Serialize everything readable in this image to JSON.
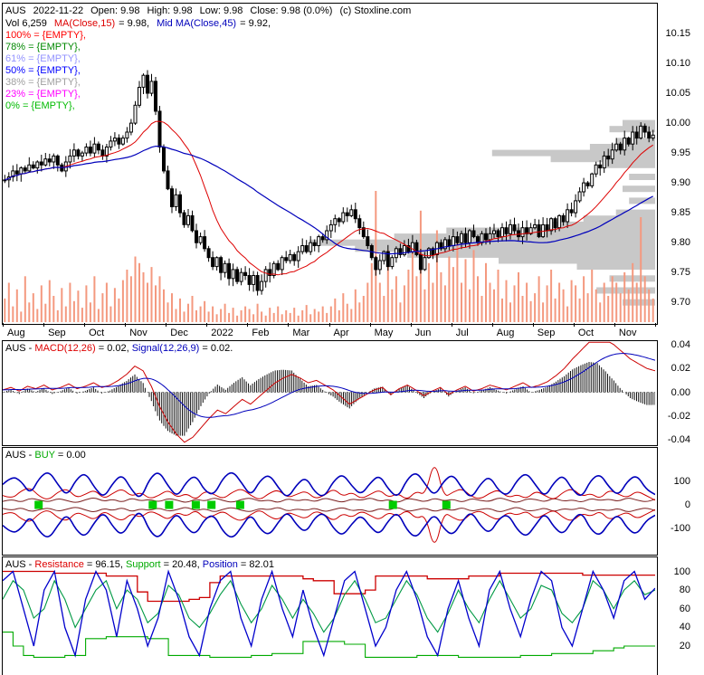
{
  "colors": {
    "background": "#ffffff",
    "border": "#000000",
    "candle": "#000000",
    "volume": "#f4997f",
    "profile": "#c8c8c8",
    "ma_fast": "#dd0000",
    "ma_slow": "#0000bb",
    "macd_line": "#cc0000",
    "signal_line": "#0000bb",
    "hist": "#111111",
    "osc_blue": "#0000bb",
    "osc_red": "#cc0000",
    "osc_maroon": "#7a2020",
    "buy_marker": "#00cc00",
    "fib": [
      "#ff0000",
      "#008800",
      "#9393ff",
      "#0000ff",
      "#a0a0a0",
      "#ff00ff",
      "#00bb00"
    ]
  },
  "main": {
    "title": {
      "symbol": "AUS",
      "date": "2022-11-22",
      "open": "Open: 9.98",
      "high": "High: 9.98",
      "low": "Low: 9.98",
      "close": "Close: 9.98 (0.0%)",
      "copyright": "(c) Stoxline.com"
    },
    "subtitle": {
      "vol": "Vol 6,259",
      "ma_fast_label": "MA(Close,15)",
      "ma_fast_value": "= 9.98,",
      "ma_slow_label": "Mid MA(Close,45)",
      "ma_slow_value": "= 9.92,"
    },
    "fib_levels": [
      "100% = {EMPTY},",
      "78% = {EMPTY},",
      "61% = {EMPTY},",
      "50% = {EMPTY},",
      "38% = {EMPTY},",
      "23% = {EMPTY},",
      "0% = {EMPTY},"
    ]
  },
  "macd_panel": {
    "prefix": "AUS - ",
    "macd_label": "MACD(12,26)",
    "macd_value": " = 0.02, ",
    "signal_label": "Signal(12,26,9)",
    "signal_value": " = 0.02."
  },
  "buy_panel": {
    "prefix": "AUS - ",
    "buy_label": "BUY",
    "buy_value": " = 0.00"
  },
  "rsp_panel": {
    "prefix": "AUS - ",
    "res_label": "Resistance",
    "res_value": " = 96.15, ",
    "sup_label": "Support",
    "sup_value": " = 20.48, ",
    "pos_label": "Position",
    "pos_value": " = 82.01"
  },
  "chart_data": [
    {
      "type": "candlestick",
      "title": "AUS daily price with MA(15), MA(45), volume and volume-by-price",
      "x_labels": [
        "Aug",
        "Sep",
        "Oct",
        "Nov",
        "Dec",
        "2022",
        "Feb",
        "Mar",
        "Apr",
        "May",
        "Jun",
        "Jul",
        "Aug",
        "Sep",
        "Oct",
        "Nov"
      ],
      "y_ticks": [
        "10.15",
        "10.10",
        "10.05",
        "10.00",
        "9.95",
        "9.90",
        "9.85",
        "9.80",
        "9.75",
        "9.70"
      ],
      "ylim": [
        9.667,
        10.2
      ],
      "ma_fast_period": 15,
      "ma_slow_period": 45,
      "last": {
        "open": 9.98,
        "high": 9.98,
        "low": 9.98,
        "close": 9.98,
        "change_pct": 0.0,
        "volume": 6259,
        "ma15": 9.98,
        "ma45": 9.92
      },
      "closes": [
        9.905,
        9.91,
        9.92,
        9.915,
        9.925,
        9.92,
        9.93,
        9.925,
        9.935,
        9.93,
        9.94,
        9.935,
        9.945,
        9.93,
        9.92,
        9.935,
        9.945,
        9.955,
        9.945,
        9.95,
        9.96,
        9.95,
        9.965,
        9.955,
        9.945,
        9.96,
        9.97,
        9.975,
        9.965,
        9.975,
        9.985,
        10.0,
        10.03,
        10.06,
        10.08,
        10.05,
        10.07,
        10.02,
        9.96,
        9.92,
        9.89,
        9.86,
        9.88,
        9.85,
        9.83,
        9.845,
        9.82,
        9.8,
        9.81,
        9.79,
        9.775,
        9.76,
        9.775,
        9.75,
        9.765,
        9.74,
        9.755,
        9.735,
        9.75,
        9.745,
        9.73,
        9.745,
        9.72,
        9.735,
        9.755,
        9.745,
        9.765,
        9.755,
        9.775,
        9.77,
        9.78,
        9.77,
        9.785,
        9.795,
        9.785,
        9.8,
        9.795,
        9.81,
        9.805,
        9.82,
        9.83,
        9.84,
        9.835,
        9.85,
        9.845,
        9.855,
        9.84,
        9.825,
        9.81,
        9.795,
        9.775,
        9.755,
        9.77,
        9.785,
        9.76,
        9.775,
        9.79,
        9.78,
        9.795,
        9.785,
        9.8,
        9.78,
        9.755,
        9.775,
        9.79,
        9.78,
        9.8,
        9.79,
        9.805,
        9.795,
        9.81,
        9.8,
        9.815,
        9.8,
        9.82,
        9.81,
        9.8,
        9.815,
        9.805,
        9.815,
        9.82,
        9.81,
        9.825,
        9.815,
        9.83,
        9.82,
        9.81,
        9.825,
        9.815,
        9.825,
        9.83,
        9.81,
        9.83,
        9.82,
        9.84,
        9.825,
        9.845,
        9.835,
        9.855,
        9.85,
        9.87,
        9.885,
        9.9,
        9.895,
        9.915,
        9.93,
        9.925,
        9.945,
        9.94,
        9.955,
        9.965,
        9.955,
        9.975,
        9.965,
        9.985,
        9.975,
        9.995,
        9.985,
        9.975,
        9.98
      ],
      "volumes": [
        18,
        30,
        12,
        25,
        8,
        35,
        15,
        22,
        10,
        28,
        14,
        32,
        20,
        9,
        26,
        12,
        30,
        16,
        24,
        11,
        28,
        15,
        35,
        10,
        22,
        30,
        12,
        26,
        18,
        32,
        40,
        35,
        50,
        45,
        38,
        30,
        42,
        28,
        35,
        25,
        15,
        22,
        10,
        18,
        8,
        14,
        20,
        9,
        12,
        16,
        8,
        12,
        6,
        10,
        14,
        7,
        11,
        5,
        9,
        12,
        10,
        6,
        14,
        8,
        5,
        11,
        7,
        12,
        6,
        9,
        7,
        11,
        5,
        9,
        13,
        6,
        10,
        8,
        12,
        7,
        12,
        18,
        9,
        22,
        14,
        10,
        25,
        15,
        20,
        30,
        45,
        100,
        30,
        20,
        55,
        25,
        35,
        15,
        28,
        40,
        60,
        35,
        85,
        25,
        45,
        30,
        70,
        38,
        28,
        50,
        42,
        65,
        30,
        48,
        25,
        55,
        35,
        20,
        45,
        30,
        25,
        40,
        18,
        32,
        15,
        28,
        38,
        20,
        30,
        16,
        22,
        35,
        15,
        28,
        40,
        18,
        30,
        25,
        12,
        32,
        28,
        18,
        35,
        22,
        40,
        25,
        15,
        30,
        20,
        35,
        30,
        22,
        38,
        25,
        45,
        30,
        80,
        35,
        25,
        18
      ],
      "volume_profile": [
        [
          10.0,
          0.05
        ],
        [
          9.99,
          0.07
        ],
        [
          9.97,
          0.06
        ],
        [
          9.96,
          0.1
        ],
        [
          9.95,
          0.25
        ],
        [
          9.94,
          0.16
        ],
        [
          9.93,
          0.08
        ],
        [
          9.91,
          0.04
        ],
        [
          9.89,
          0.05
        ],
        [
          9.87,
          0.04
        ],
        [
          9.85,
          0.06
        ],
        [
          9.84,
          0.11
        ],
        [
          9.83,
          0.16
        ],
        [
          9.82,
          0.32
        ],
        [
          9.81,
          0.4
        ],
        [
          9.8,
          0.53
        ],
        [
          9.79,
          0.46
        ],
        [
          9.78,
          0.38
        ],
        [
          9.77,
          0.24
        ],
        [
          9.76,
          0.12
        ],
        [
          9.74,
          0.07
        ],
        [
          9.72,
          0.09
        ],
        [
          9.7,
          0.05
        ]
      ]
    },
    {
      "type": "macd",
      "title": "MACD(12,26) with Signal(12,26,9)",
      "y_ticks": [
        "0.04",
        "0.02",
        "0.00",
        "-0.02",
        "-0.04"
      ],
      "ylim": [
        -0.043,
        0.043
      ],
      "signal_period": 9,
      "last": {
        "macd": 0.02,
        "signal": 0.02
      },
      "macd": [
        0.002,
        0.004,
        0.001,
        0.005,
        0.003,
        0.006,
        0.002,
        0.004,
        0.007,
        0.003,
        0.005,
        0.008,
        0.004,
        0.006,
        0.01,
        0.015,
        0.022,
        0.018,
        0.005,
        -0.012,
        -0.025,
        -0.035,
        -0.042,
        -0.038,
        -0.03,
        -0.022,
        -0.015,
        -0.018,
        -0.012,
        -0.006,
        -0.01,
        -0.004,
        0.002,
        0.008,
        0.012,
        0.015,
        0.012,
        0.008,
        0.01,
        0.006,
        0.002,
        -0.004,
        -0.01,
        -0.006,
        -0.002,
        0.002,
        0.004,
        -0.002,
        0.003,
        0.006,
        0.002,
        -0.003,
        0.001,
        0.004,
        -0.002,
        0.002,
        0.005,
        0.001,
        0.003,
        0.006,
        0.004,
        0.002,
        0.005,
        0.008,
        0.004,
        0.006,
        0.009,
        0.014,
        0.02,
        0.028,
        0.035,
        0.042,
        0.046,
        0.044,
        0.04,
        0.034,
        0.028,
        0.024,
        0.02,
        0.018
      ]
    },
    {
      "type": "oscillator",
      "title": "BUY indicator",
      "y_ticks": [
        "100",
        "0",
        "-100"
      ],
      "last": {
        "buy": 0.0
      },
      "blue_amplitude": [
        87,
        123,
        102,
        44,
        116,
        145,
        87,
        36,
        109,
        138,
        73,
        29,
        94,
        131,
        65,
        22,
        113,
        145,
        80,
        32,
        99,
        128,
        58,
        41,
        116,
        145,
        94,
        36,
        104,
        131,
        73,
        26,
        87,
        119,
        51,
        32,
        102,
        133,
        80,
        41,
        94,
        128,
        65,
        29,
        109,
        142,
        87,
        36,
        102,
        131,
        70,
        26,
        90,
        123,
        58,
        38,
        107,
        138,
        84,
        32,
        96,
        128,
        64,
        29,
        106,
        133,
        75,
        38,
        102,
        128,
        67,
        44
      ],
      "red_amplitude": [
        40,
        25,
        60,
        75,
        35,
        20,
        55,
        70,
        30,
        45,
        65,
        25,
        50,
        70,
        35,
        55,
        25,
        40,
        65,
        30,
        50,
        20,
        60,
        45,
        25,
        55,
        70,
        40,
        20,
        50,
        65,
        30,
        45,
        60,
        25,
        40,
        70,
        35,
        55,
        25,
        45,
        65,
        30,
        50,
        20,
        60,
        40,
        200,
        30,
        55,
        70,
        35,
        25,
        50,
        65,
        30,
        45,
        25,
        60,
        40,
        20,
        55,
        70,
        35,
        50,
        25,
        65,
        45,
        30,
        60,
        40,
        20
      ],
      "maroon_amplitude": [
        15,
        25,
        10,
        30,
        20,
        12,
        28,
        18,
        8,
        22,
        32,
        14,
        25,
        10,
        30,
        16,
        24,
        12,
        28,
        20,
        8,
        26,
        15,
        32,
        18,
        10,
        24,
        30,
        14,
        22,
        8,
        28,
        16,
        25,
        12,
        30,
        20,
        10,
        26,
        18,
        32,
        14,
        24,
        8,
        28,
        22,
        12,
        30,
        16,
        25,
        10,
        28,
        18,
        14,
        32,
        20,
        8,
        26,
        24,
        12,
        30,
        15,
        22,
        10,
        28,
        18,
        25,
        14,
        32,
        20,
        12,
        24
      ],
      "buy_marker_x": [
        0.055,
        0.23,
        0.255,
        0.296,
        0.32,
        0.364,
        0.598,
        0.68
      ]
    },
    {
      "type": "line",
      "title": "Resistance / Support / Position",
      "y_ticks": [
        "100",
        "80",
        "60",
        "40",
        "20"
      ],
      "ylim": [
        -10,
        115
      ],
      "last": {
        "resistance": 96.15,
        "support": 20.48,
        "position": 82.01
      },
      "series": [
        {
          "name": "Resistance",
          "color": "#cc0000",
          "style": "step",
          "values": [
            100,
            100,
            100,
            100,
            100,
            98,
            98,
            98,
            98,
            98,
            95,
            95,
            95,
            78,
            68,
            68,
            68,
            68,
            70,
            72,
            88,
            95,
            95,
            95,
            95,
            95,
            95,
            95,
            95,
            92,
            90,
            90,
            76,
            76,
            76,
            80,
            95,
            95,
            95,
            95,
            95,
            92,
            92,
            92,
            92,
            95,
            95,
            95,
            98,
            98,
            98,
            98,
            98,
            98,
            98,
            98,
            96,
            96,
            96,
            96,
            96,
            96,
            96,
            96
          ]
        },
        {
          "name": "Support",
          "color": "#00aa00",
          "style": "step",
          "values": [
            35,
            20,
            10,
            8,
            8,
            8,
            10,
            10,
            28,
            28,
            30,
            30,
            30,
            30,
            28,
            28,
            10,
            10,
            10,
            10,
            8,
            8,
            8,
            8,
            10,
            10,
            12,
            12,
            12,
            25,
            25,
            25,
            25,
            22,
            22,
            8,
            8,
            8,
            8,
            8,
            10,
            10,
            10,
            10,
            8,
            8,
            8,
            8,
            8,
            8,
            10,
            10,
            10,
            12,
            12,
            12,
            12,
            15,
            15,
            18,
            20,
            20,
            20,
            20
          ]
        },
        {
          "name": "PositionTrack",
          "color": "#009944",
          "style": "line",
          "values": [
            70,
            90,
            80,
            50,
            60,
            90,
            70,
            40,
            60,
            80,
            90,
            60,
            80,
            70,
            45,
            55,
            85,
            75,
            50,
            40,
            55,
            75,
            90,
            65,
            45,
            60,
            85,
            70,
            50,
            70,
            55,
            35,
            50,
            75,
            90,
            70,
            45,
            50,
            70,
            90,
            75,
            50,
            35,
            55,
            80,
            60,
            45,
            70,
            90,
            70,
            50,
            60,
            85,
            80,
            55,
            45,
            60,
            90,
            80,
            60,
            80,
            90,
            75,
            80
          ]
        },
        {
          "name": "Position",
          "color": "#0000cc",
          "style": "line",
          "values": [
            90,
            100,
            60,
            20,
            80,
            100,
            40,
            10,
            70,
            100,
            80,
            30,
            90,
            60,
            20,
            50,
            100,
            70,
            30,
            10,
            60,
            90,
            100,
            50,
            20,
            70,
            100,
            60,
            30,
            80,
            40,
            10,
            50,
            90,
            100,
            60,
            20,
            40,
            80,
            100,
            70,
            30,
            10,
            60,
            90,
            50,
            20,
            80,
            100,
            60,
            30,
            70,
            100,
            90,
            40,
            20,
            60,
            100,
            80,
            50,
            90,
            100,
            70,
            82
          ]
        }
      ]
    }
  ]
}
